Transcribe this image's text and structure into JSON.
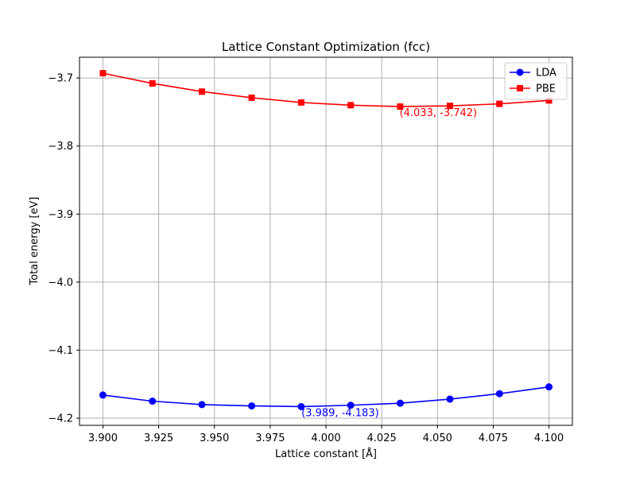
{
  "chart_data": {
    "type": "line",
    "title": "Lattice Constant Optimization (fcc)",
    "xlabel": "Lattice constant [Å]",
    "ylabel": "Total energy [eV]",
    "xlim": [
      3.8895,
      4.1105
    ],
    "ylim": [
      -4.2105,
      -3.6695
    ],
    "xticks": [
      3.9,
      3.925,
      3.95,
      3.975,
      4.0,
      4.025,
      4.05,
      4.075,
      4.1
    ],
    "xtick_labels": [
      "3.900",
      "3.925",
      "3.950",
      "3.975",
      "4.000",
      "4.025",
      "4.050",
      "4.075",
      "4.100"
    ],
    "yticks": [
      -4.2,
      -4.1,
      -4.0,
      -3.9,
      -3.8,
      -3.7
    ],
    "ytick_labels": [
      "−4.2",
      "−4.1",
      "−4.0",
      "−3.9",
      "−3.8",
      "−3.7"
    ],
    "grid": true,
    "legend_position": "top-right",
    "x": [
      3.9,
      3.9222,
      3.9444,
      3.9667,
      3.9889,
      4.0111,
      4.0333,
      4.0556,
      4.0778,
      4.1
    ],
    "series": [
      {
        "name": "LDA",
        "color": "#0000ff",
        "marker": "circle",
        "values": [
          -4.166,
          -4.175,
          -4.18,
          -4.182,
          -4.183,
          -4.181,
          -4.178,
          -4.172,
          -4.164,
          -4.154
        ]
      },
      {
        "name": "PBE",
        "color": "#ff0000",
        "marker": "square",
        "values": [
          -3.693,
          -3.708,
          -3.72,
          -3.729,
          -3.736,
          -3.74,
          -3.742,
          -3.741,
          -3.738,
          -3.733
        ]
      }
    ],
    "annotations": [
      {
        "text": "(3.989, -4.183)",
        "x": 3.989,
        "y": -4.183,
        "color": "#0000ff"
      },
      {
        "text": "(4.033, -3.742)",
        "x": 4.033,
        "y": -3.742,
        "color": "#ff0000"
      }
    ]
  }
}
